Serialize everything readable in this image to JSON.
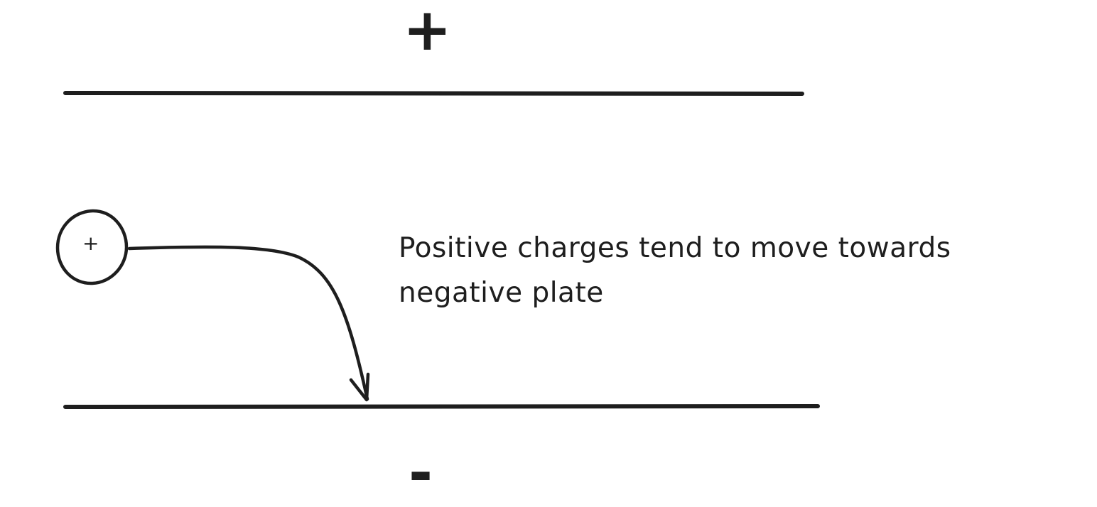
{
  "diagram": {
    "top_plate_label": "+",
    "bottom_plate_label": "-",
    "particle_label": "+",
    "caption_lines": [
      "Positive charges tend to move towards",
      "negative plate"
    ],
    "stroke_color": "#1e1e1e",
    "background_color": "#ffffff"
  }
}
